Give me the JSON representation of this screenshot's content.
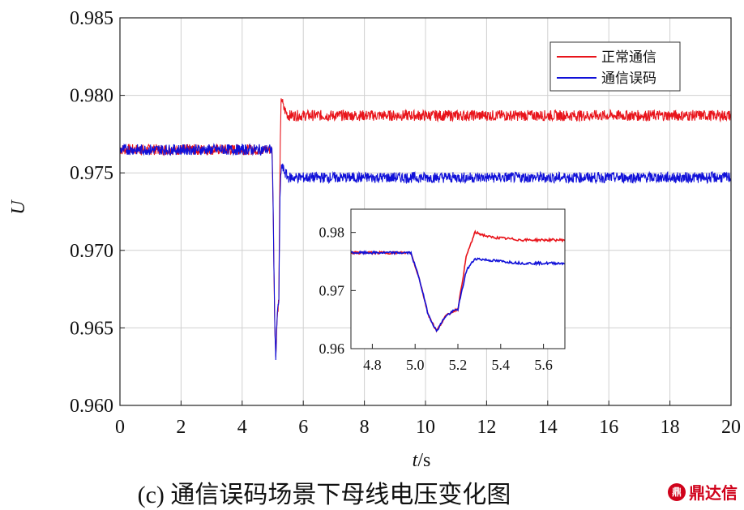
{
  "chart_data": {
    "type": "line",
    "xlabel_italic": "t",
    "xlabel_rest": "/s",
    "ylabel": "U",
    "xlim": [
      0,
      20
    ],
    "ylim": [
      0.96,
      0.985
    ],
    "x_ticks": [
      "0",
      "2",
      "4",
      "6",
      "8",
      "10",
      "12",
      "14",
      "16",
      "18",
      "20"
    ],
    "y_ticks": [
      "0.960",
      "0.965",
      "0.970",
      "0.975",
      "0.980",
      "0.985"
    ],
    "grid": true,
    "legend_position": "top-right",
    "series": [
      {
        "name": "正常通信",
        "color": "#e8141b",
        "x": [
          0,
          4.98,
          5.02,
          5.06,
          5.1,
          5.14,
          5.18,
          5.2,
          5.24,
          5.28,
          5.35,
          5.5,
          6,
          20
        ],
        "y": [
          0.9765,
          0.9765,
          0.972,
          0.966,
          0.963,
          0.9655,
          0.9665,
          0.9668,
          0.976,
          0.98,
          0.9792,
          0.9787,
          0.9787,
          0.9787
        ],
        "noise": 0.00035
      },
      {
        "name": "通信误码",
        "color": "#1010d8",
        "x": [
          0,
          4.98,
          5.02,
          5.06,
          5.1,
          5.14,
          5.18,
          5.2,
          5.24,
          5.28,
          5.35,
          5.5,
          6,
          20
        ],
        "y": [
          0.9765,
          0.9765,
          0.972,
          0.966,
          0.963,
          0.9655,
          0.9665,
          0.9668,
          0.9735,
          0.9755,
          0.9752,
          0.9747,
          0.9747,
          0.9747
        ],
        "noise": 0.00035
      }
    ],
    "inset": {
      "xlim": [
        4.7,
        5.7
      ],
      "ylim": [
        0.96,
        0.984
      ],
      "x_ticks": [
        "4.8",
        "5.0",
        "5.2",
        "5.4",
        "5.6"
      ],
      "y_ticks": [
        "0.96",
        "0.97",
        "0.98"
      ]
    },
    "caption": "(c) 通信误码场景下母线电压变化图"
  },
  "watermark": {
    "logo_text": "鼎",
    "text": "鼎达信"
  }
}
